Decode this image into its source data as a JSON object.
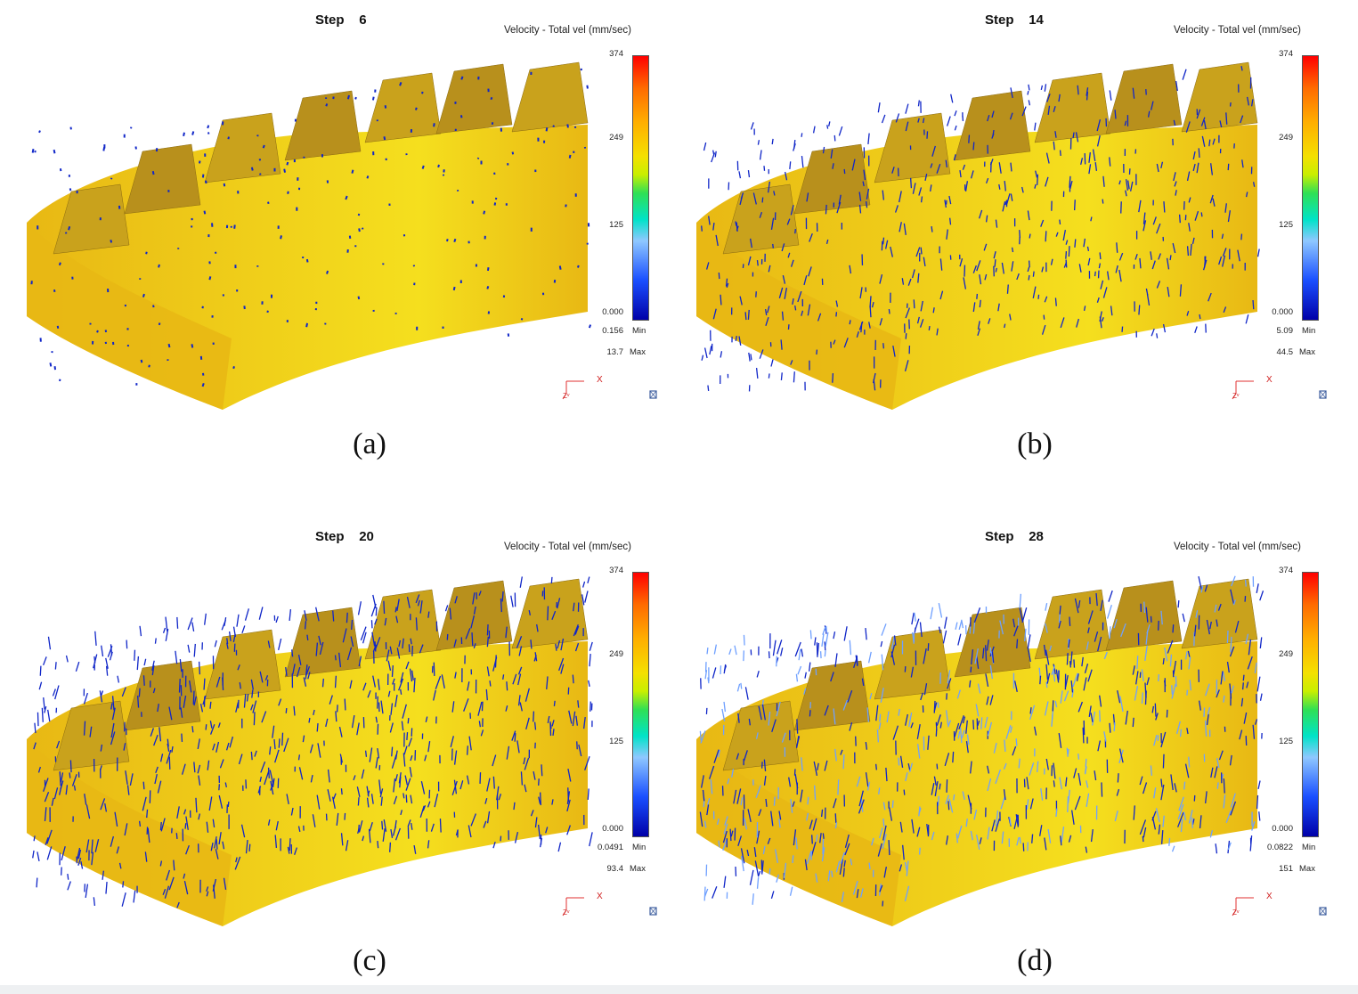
{
  "panels": [
    {
      "id": "a",
      "step_label": "Step",
      "step_number": "6",
      "variable_title": "Velocity - Total vel (mm/sec)",
      "legend_ticks": [
        "374",
        "249",
        "125",
        "0.000"
      ],
      "min_value": "0.156",
      "min_label": "Min",
      "max_value": "13.7",
      "max_label": "Max",
      "axis_x": "X",
      "axis_zy": "Zᵛ",
      "caption": "(a)"
    },
    {
      "id": "b",
      "step_label": "Step",
      "step_number": "14",
      "variable_title": "Velocity - Total vel (mm/sec)",
      "legend_ticks": [
        "374",
        "249",
        "125",
        "0.000"
      ],
      "min_value": "5.09",
      "min_label": "Min",
      "max_value": "44.5",
      "max_label": "Max",
      "axis_x": "X",
      "axis_zy": "Zᵛ",
      "caption": "(b)"
    },
    {
      "id": "c",
      "step_label": "Step",
      "step_number": "20",
      "variable_title": "Velocity - Total vel (mm/sec)",
      "legend_ticks": [
        "374",
        "249",
        "125",
        "0.000"
      ],
      "min_value": "0.0491",
      "min_label": "Min",
      "max_value": "93.4",
      "max_label": "Max",
      "axis_x": "X",
      "axis_zy": "Zᵛ",
      "caption": "(c)"
    },
    {
      "id": "d",
      "step_label": "Step",
      "step_number": "28",
      "variable_title": "Velocity - Total vel (mm/sec)",
      "legend_ticks": [
        "374",
        "249",
        "125",
        "0.000"
      ],
      "min_value": "0.0822",
      "min_label": "Min",
      "max_value": "151",
      "max_label": "Max",
      "axis_x": "X",
      "axis_zy": "Zᵛ",
      "caption": "(d)"
    }
  ],
  "colors": {
    "gear_surface": "#e8b814",
    "gear_highlight": "#f5df1e",
    "gear_shadow": "#b8901c",
    "vector_dark": "#1026c8",
    "vector_light": "#6fa0ff",
    "background": "#ffffff"
  }
}
